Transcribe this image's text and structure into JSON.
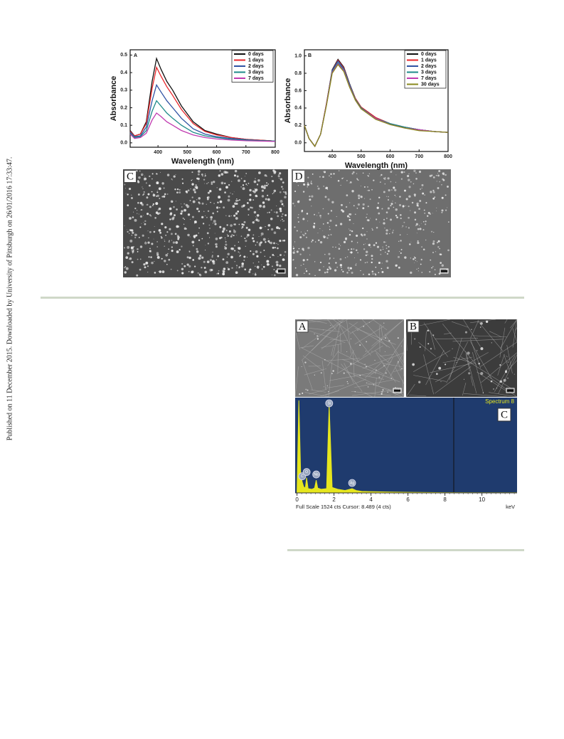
{
  "side_note": "Published on 11 December 2015. Downloaded by University of Pittsburgh on 26/01/2016 17:33:47.",
  "figure1_panels": {
    "C": "C",
    "D": "D"
  },
  "figure2_panels": {
    "A": "A",
    "B": "B"
  },
  "chart_data": [
    {
      "type": "line",
      "panel": "A",
      "xlabel": "Wavelength (nm)",
      "ylabel": "Absorbance",
      "x": [
        305,
        320,
        340,
        360,
        380,
        395,
        410,
        430,
        450,
        480,
        520,
        560,
        600,
        650,
        700,
        750,
        800
      ],
      "xlim": [
        305,
        800
      ],
      "xticks": [
        400,
        500,
        600,
        700,
        800
      ],
      "ylim": [
        -0.025,
        0.53
      ],
      "yticks": [
        {
          "value": 0,
          "label": "0.0"
        },
        0.1,
        0.2,
        0.3,
        0.4,
        0.5
      ],
      "series": [
        {
          "name": "0 days",
          "color": "#111111",
          "values": [
            0.07,
            0.04,
            0.05,
            0.12,
            0.35,
            0.48,
            0.42,
            0.35,
            0.3,
            0.21,
            0.12,
            0.07,
            0.05,
            0.03,
            0.02,
            0.015,
            0.01
          ]
        },
        {
          "name": "1 days",
          "color": "#e8262a",
          "values": [
            0.065,
            0.04,
            0.05,
            0.11,
            0.31,
            0.43,
            0.38,
            0.32,
            0.27,
            0.19,
            0.11,
            0.065,
            0.045,
            0.03,
            0.02,
            0.015,
            0.01
          ]
        },
        {
          "name": "2 days",
          "color": "#2f52a3",
          "values": [
            0.06,
            0.035,
            0.04,
            0.09,
            0.24,
            0.33,
            0.29,
            0.24,
            0.2,
            0.14,
            0.08,
            0.05,
            0.035,
            0.025,
            0.018,
            0.013,
            0.01
          ]
        },
        {
          "name": "3 days",
          "color": "#1e8a8a",
          "values": [
            0.055,
            0.03,
            0.035,
            0.07,
            0.18,
            0.24,
            0.21,
            0.17,
            0.14,
            0.1,
            0.06,
            0.04,
            0.03,
            0.02,
            0.015,
            0.012,
            0.01
          ]
        },
        {
          "name": "7 days",
          "color": "#c03ab0",
          "values": [
            0.05,
            0.025,
            0.03,
            0.055,
            0.13,
            0.17,
            0.15,
            0.12,
            0.1,
            0.07,
            0.045,
            0.03,
            0.022,
            0.016,
            0.012,
            0.01,
            0.008
          ]
        }
      ]
    },
    {
      "type": "line",
      "panel": "B",
      "xlabel": "Wavelength (nm)",
      "ylabel": "Absorbance",
      "x": [
        304,
        320,
        340,
        360,
        380,
        400,
        420,
        440,
        460,
        480,
        500,
        550,
        600,
        650,
        700,
        750,
        800
      ],
      "xlim": [
        304,
        800
      ],
      "xticks": [
        400,
        500,
        600,
        700,
        800
      ],
      "ylim": [
        -0.1,
        1.07
      ],
      "yticks": [
        {
          "value": 0,
          "label": "0.0"
        },
        0.2,
        0.4,
        0.6,
        0.8,
        {
          "value": 1,
          "label": "1.0"
        }
      ],
      "series": [
        {
          "name": "0 days",
          "color": "#111111",
          "values": [
            0.2,
            0.05,
            -0.04,
            0.1,
            0.45,
            0.84,
            0.96,
            0.87,
            0.68,
            0.51,
            0.41,
            0.29,
            0.22,
            0.18,
            0.15,
            0.13,
            0.12
          ]
        },
        {
          "name": "1 days",
          "color": "#e8262a",
          "values": [
            0.2,
            0.05,
            -0.04,
            0.1,
            0.45,
            0.83,
            0.95,
            0.86,
            0.67,
            0.51,
            0.41,
            0.29,
            0.22,
            0.18,
            0.15,
            0.13,
            0.12
          ]
        },
        {
          "name": "2 days",
          "color": "#2f52a3",
          "values": [
            0.2,
            0.05,
            -0.04,
            0.1,
            0.44,
            0.83,
            0.94,
            0.85,
            0.67,
            0.5,
            0.4,
            0.28,
            0.22,
            0.18,
            0.15,
            0.13,
            0.12
          ]
        },
        {
          "name": "3 days",
          "color": "#1e8a8a",
          "values": [
            0.2,
            0.05,
            -0.04,
            0.1,
            0.44,
            0.82,
            0.92,
            0.84,
            0.66,
            0.5,
            0.4,
            0.28,
            0.22,
            0.18,
            0.15,
            0.13,
            0.12
          ]
        },
        {
          "name": "7 days",
          "color": "#c03ab0",
          "values": [
            0.2,
            0.05,
            -0.04,
            0.1,
            0.44,
            0.81,
            0.91,
            0.83,
            0.65,
            0.49,
            0.39,
            0.28,
            0.21,
            0.17,
            0.15,
            0.13,
            0.12
          ]
        },
        {
          "name": "30 days",
          "color": "#8a8a1e",
          "values": [
            0.2,
            0.05,
            -0.04,
            0.1,
            0.43,
            0.8,
            0.9,
            0.82,
            0.64,
            0.49,
            0.39,
            0.27,
            0.21,
            0.17,
            0.14,
            0.13,
            0.12
          ]
        }
      ]
    },
    {
      "type": "spectrum",
      "panel": "C",
      "title": "Spectrum 8",
      "xlabel": "keV",
      "footer": "Full Scale 1524 cts Cursor: 8.489  (4 cts)",
      "x": [
        -0.1,
        0.0,
        0.1,
        0.2,
        0.28,
        0.36,
        0.45,
        0.52,
        0.6,
        0.8,
        0.95,
        1.04,
        1.12,
        1.3,
        1.6,
        1.74,
        1.9,
        2.2,
        2.6,
        2.98,
        3.2,
        3.5,
        4,
        5,
        6,
        8,
        10,
        11.9
      ],
      "values": [
        0,
        0,
        1524,
        300,
        180,
        100,
        80,
        250,
        70,
        60,
        80,
        210,
        80,
        60,
        70,
        1450,
        90,
        60,
        40,
        70,
        40,
        25,
        20,
        15,
        10,
        5,
        3,
        2
      ],
      "xlim": [
        -0.1,
        11.9
      ],
      "xticks": [
        0,
        2,
        4,
        6,
        8,
        10
      ],
      "ylim": [
        0,
        1524
      ],
      "color": "#e6e61e",
      "peak_labels": [
        {
          "label": "C",
          "x": 0.28
        },
        {
          "label": "O",
          "x": 0.52
        },
        {
          "label": "Na",
          "x": 1.04
        },
        {
          "label": "Si",
          "x": 1.74
        },
        {
          "label": "Ag",
          "x": 2.98
        }
      ]
    }
  ]
}
